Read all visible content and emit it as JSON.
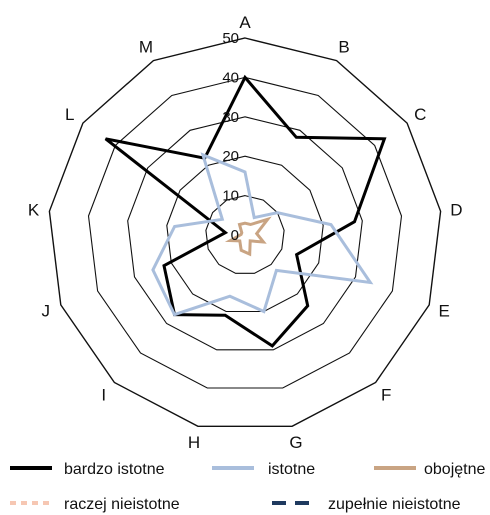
{
  "chart_data": {
    "type": "radar",
    "categories": [
      "A",
      "B",
      "C",
      "D",
      "E",
      "F",
      "G",
      "H",
      "I",
      "J",
      "K",
      "L",
      "M"
    ],
    "radial_ticks": [
      0,
      10,
      20,
      30,
      40,
      50
    ],
    "rmax": 50,
    "series": [
      {
        "name": "bardzo istotne",
        "color": "#000000",
        "dash": "",
        "values": [
          40,
          28,
          43,
          28,
          14,
          24,
          29,
          21,
          27,
          22,
          5,
          43,
          22
        ]
      },
      {
        "name": "istotne",
        "color": "#a9bedc",
        "dash": "",
        "values": [
          16,
          5,
          10,
          22,
          34,
          12,
          20,
          16,
          27,
          25,
          18,
          7,
          23
        ]
      },
      {
        "name": "obojętne",
        "color": "#c9a483",
        "dash": "",
        "values": [
          3,
          3,
          7,
          3,
          5,
          2,
          5,
          4,
          2,
          4,
          1,
          1,
          3
        ]
      },
      {
        "name": "raczej nieistotne",
        "color": "#f6c7b3",
        "dash": "6,5",
        "values": [
          0,
          0,
          0,
          0,
          0,
          0,
          0,
          0,
          0,
          0,
          0,
          0,
          0
        ]
      },
      {
        "name": "zupełnie nieistotne",
        "color": "#1f3a5f",
        "dash": "14,9",
        "values": [
          0,
          0,
          0,
          0,
          0,
          0,
          0,
          0,
          0,
          0,
          0,
          0,
          0
        ]
      }
    ]
  }
}
